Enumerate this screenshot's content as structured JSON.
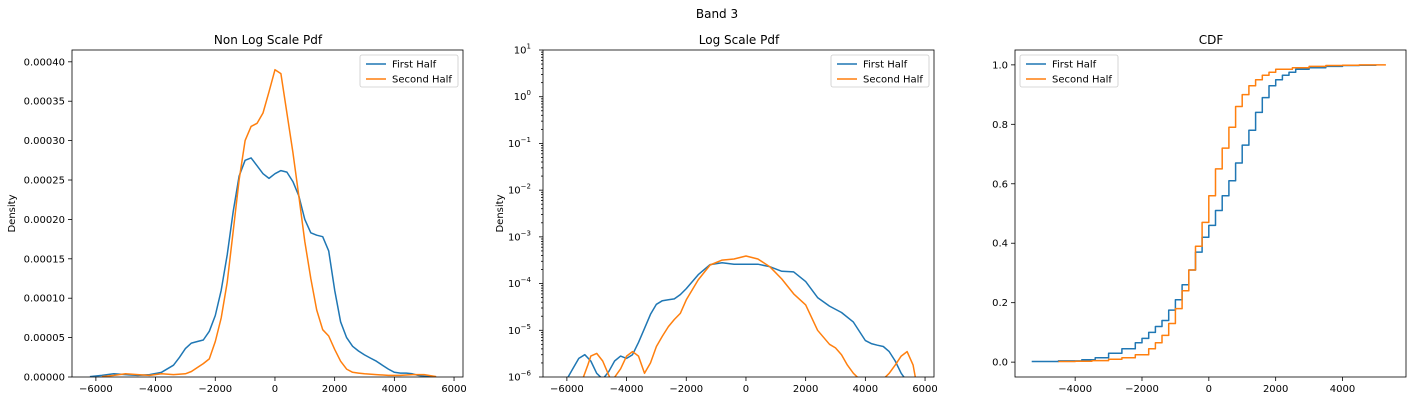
{
  "figure": {
    "suptitle": "Band 3"
  },
  "colors": {
    "first_half": "#1f77b4",
    "second_half": "#ff7f0e"
  },
  "chart_data": [
    {
      "type": "line",
      "title": "Non Log Scale Pdf",
      "xlabel": "",
      "ylabel": "Density",
      "xlim": [
        -6800,
        6300
      ],
      "ylim": [
        0,
        0.000415
      ],
      "xticks": [
        -6000,
        -4000,
        -2000,
        0,
        2000,
        4000,
        6000
      ],
      "xtick_labels": [
        "−6000",
        "−4000",
        "−2000",
        "0",
        "2000",
        "4000",
        "6000"
      ],
      "yticks": [
        0,
        5e-05,
        0.0001,
        0.00015,
        0.0002,
        0.00025,
        0.0003,
        0.00035,
        0.0004
      ],
      "ytick_labels": [
        "0.00000",
        "0.00005",
        "0.00010",
        "0.00015",
        "0.00020",
        "0.00025",
        "0.00030",
        "0.00035",
        "0.00040"
      ],
      "legend": "top-right",
      "series": [
        {
          "name": "First Half",
          "x": [
            -6200,
            -5800,
            -5400,
            -5000,
            -4600,
            -4200,
            -3800,
            -3400,
            -3200,
            -3000,
            -2800,
            -2600,
            -2400,
            -2200,
            -2000,
            -1800,
            -1600,
            -1400,
            -1200,
            -1000,
            -800,
            -600,
            -400,
            -200,
            0,
            200,
            400,
            600,
            800,
            1000,
            1200,
            1400,
            1600,
            1800,
            2000,
            2200,
            2400,
            2600,
            2800,
            3000,
            3200,
            3400,
            3600,
            3800,
            4000,
            4200,
            4400,
            4600,
            4800,
            5000,
            5400
          ],
          "y": [
            5e-07,
            2e-06,
            4e-06,
            3e-06,
            2e-06,
            3e-06,
            6e-06,
            1.5e-05,
            2.5e-05,
            3.6e-05,
            4.3e-05,
            4.5e-05,
            4.7e-05,
            5.8e-05,
            7.8e-05,
            0.00011,
            0.000155,
            0.00021,
            0.000255,
            0.000275,
            0.000278,
            0.000268,
            0.000258,
            0.000252,
            0.000258,
            0.000262,
            0.00026,
            0.000248,
            0.00023,
            0.0002,
            0.000183,
            0.00018,
            0.000178,
            0.00016,
            0.00011,
            7e-05,
            5e-05,
            3.9e-05,
            3.3e-05,
            2.8e-05,
            2.4e-05,
            2e-05,
            1.5e-05,
            1e-05,
            6e-06,
            5e-06,
            5e-06,
            4e-06,
            2e-06,
            1e-06,
            2e-07
          ]
        },
        {
          "name": "Second Half",
          "x": [
            -5800,
            -5400,
            -5000,
            -4600,
            -4200,
            -3800,
            -3400,
            -3000,
            -2800,
            -2600,
            -2400,
            -2200,
            -2000,
            -1800,
            -1600,
            -1400,
            -1200,
            -1000,
            -800,
            -600,
            -400,
            -200,
            0,
            200,
            400,
            600,
            800,
            1000,
            1200,
            1400,
            1600,
            1800,
            2000,
            2200,
            2400,
            2600,
            2800,
            3000,
            3400,
            3800,
            4200,
            4600,
            5000,
            5400
          ],
          "y": [
            5e-07,
            2e-06,
            4e-06,
            3e-06,
            2e-06,
            4e-06,
            3e-06,
            4e-06,
            7e-06,
            1.2e-05,
            1.7e-05,
            2.3e-05,
            4.5e-05,
            7.5e-05,
            0.00012,
            0.000185,
            0.00025,
            0.0003,
            0.000318,
            0.000322,
            0.000335,
            0.000362,
            0.00039,
            0.000385,
            0.000335,
            0.000285,
            0.00023,
            0.000172,
            0.000125,
            8.5e-05,
            6e-05,
            5.2e-05,
            3.5e-05,
            2e-05,
            1e-05,
            6e-06,
            5e-06,
            4e-06,
            3e-06,
            2e-06,
            2e-06,
            3e-06,
            3e-06,
            5e-07
          ]
        }
      ]
    },
    {
      "type": "line",
      "title": "Log Scale Pdf",
      "xlabel": "",
      "ylabel": "Density",
      "yscale": "log",
      "xlim": [
        -6800,
        6300
      ],
      "ylim": [
        1e-06,
        10
      ],
      "xticks": [
        -6000,
        -4000,
        -2000,
        0,
        2000,
        4000,
        6000
      ],
      "xtick_labels": [
        "−6000",
        "−4000",
        "−2000",
        "0",
        "2000",
        "4000",
        "6000"
      ],
      "yticks": [
        1e-06,
        1e-05,
        0.0001,
        0.001,
        0.01,
        0.1,
        1,
        10
      ],
      "ytick_exponents": [
        "−6",
        "−5",
        "−4",
        "−3",
        "−2",
        "−1",
        "0",
        "1"
      ],
      "legend": "top-right",
      "series": [
        {
          "name": "First Half",
          "x": [
            -6000,
            -5800,
            -5600,
            -5400,
            -5200,
            -5000,
            -4800,
            -4600,
            -4400,
            -4200,
            -4000,
            -3800,
            -3600,
            -3400,
            -3200,
            -3000,
            -2800,
            -2600,
            -2400,
            -2200,
            -2000,
            -1600,
            -1200,
            -800,
            -400,
            0,
            400,
            800,
            1200,
            1600,
            2000,
            2400,
            2800,
            3200,
            3600,
            4000,
            4200,
            4400,
            4600,
            4800,
            5000,
            5200,
            5400
          ],
          "y": [
            9e-07,
            1.5e-06,
            2.5e-06,
            3e-06,
            2.2e-06,
            1.2e-06,
            9e-07,
            1.3e-06,
            2.2e-06,
            2.8e-06,
            2.5e-06,
            3e-06,
            5.5e-06,
            1.1e-05,
            2.2e-05,
            3.6e-05,
            4.3e-05,
            4.5e-05,
            4.7e-05,
            5.8e-05,
            7.8e-05,
            0.000155,
            0.000255,
            0.000278,
            0.000258,
            0.000258,
            0.00026,
            0.00023,
            0.000183,
            0.000178,
            0.00011,
            5e-05,
            3.3e-05,
            2.4e-05,
            1.5e-05,
            6e-06,
            5.2e-06,
            4.8e-06,
            4.5e-06,
            3.5e-06,
            2.2e-06,
            1.2e-06,
            8e-07
          ]
        },
        {
          "name": "Second Half",
          "x": [
            -5500,
            -5300,
            -5200,
            -5000,
            -4800,
            -4600,
            -4500,
            -4200,
            -4000,
            -3800,
            -3600,
            -3400,
            -3200,
            -3000,
            -2800,
            -2600,
            -2400,
            -2200,
            -2000,
            -1600,
            -1200,
            -800,
            -400,
            0,
            400,
            800,
            1200,
            1600,
            2000,
            2400,
            2800,
            3000,
            3200,
            3400,
            3600,
            3800,
            4000,
            4200,
            4400,
            4600,
            4800,
            5000,
            5200,
            5400,
            5600,
            5700
          ],
          "y": [
            8e-07,
            1.8e-06,
            2.8e-06,
            3.2e-06,
            2.2e-06,
            1.1e-06,
            8e-07,
            1.5e-06,
            2.8e-06,
            3.5e-06,
            2.8e-06,
            1.2e-06,
            2e-06,
            4.5e-06,
            7.5e-06,
            1.2e-05,
            1.7e-05,
            2.3e-05,
            4.5e-05,
            0.00012,
            0.00025,
            0.000318,
            0.000335,
            0.00039,
            0.000335,
            0.00023,
            0.000125,
            6e-05,
            3.5e-05,
            1e-05,
            5e-06,
            4.2e-06,
            3e-06,
            1.8e-06,
            1.2e-06,
            9e-07,
            8e-07,
            9e-07,
            8e-07,
            9e-07,
            1.2e-06,
            1.8e-06,
            2.8e-06,
            3.5e-06,
            1.8e-06,
            8e-07
          ]
        }
      ]
    },
    {
      "type": "line",
      "title": "CDF",
      "xlabel": "",
      "ylabel": "",
      "xlim": [
        -5800,
        5900
      ],
      "ylim": [
        -0.05,
        1.05
      ],
      "xticks": [
        -4000,
        -2000,
        0,
        2000,
        4000
      ],
      "xtick_labels": [
        "−4000",
        "−2000",
        "0",
        "2000",
        "4000"
      ],
      "yticks": [
        0,
        0.2,
        0.4,
        0.6,
        0.8,
        1.0
      ],
      "ytick_labels": [
        "0.0",
        "0.2",
        "0.4",
        "0.6",
        "0.8",
        "1.0"
      ],
      "legend": "top-left",
      "series": [
        {
          "name": "First Half",
          "x": [
            -5300,
            -4500,
            -3800,
            -3400,
            -3000,
            -2600,
            -2200,
            -2000,
            -1800,
            -1600,
            -1400,
            -1200,
            -1000,
            -800,
            -600,
            -400,
            -200,
            0,
            200,
            400,
            600,
            800,
            1000,
            1200,
            1400,
            1600,
            1800,
            2000,
            2200,
            2400,
            2600,
            3000,
            3500,
            4000,
            4500,
            5000
          ],
          "y": [
            0.002,
            0.004,
            0.008,
            0.015,
            0.03,
            0.045,
            0.065,
            0.08,
            0.1,
            0.12,
            0.14,
            0.175,
            0.21,
            0.26,
            0.31,
            0.37,
            0.42,
            0.46,
            0.51,
            0.56,
            0.61,
            0.67,
            0.73,
            0.78,
            0.84,
            0.89,
            0.93,
            0.95,
            0.965,
            0.975,
            0.985,
            0.99,
            0.995,
            0.998,
            0.999,
            1.0
          ]
        },
        {
          "name": "Second Half",
          "x": [
            -4500,
            -4000,
            -3500,
            -3000,
            -2600,
            -2200,
            -1800,
            -1600,
            -1400,
            -1200,
            -1000,
            -800,
            -600,
            -400,
            -200,
            0,
            200,
            400,
            600,
            800,
            1000,
            1200,
            1400,
            1600,
            1800,
            2000,
            2500,
            3000,
            3500,
            4000,
            4500,
            5000,
            5300
          ],
          "y": [
            0.002,
            0.003,
            0.005,
            0.01,
            0.015,
            0.025,
            0.045,
            0.065,
            0.09,
            0.13,
            0.18,
            0.24,
            0.31,
            0.39,
            0.47,
            0.56,
            0.65,
            0.72,
            0.79,
            0.86,
            0.9,
            0.93,
            0.95,
            0.965,
            0.975,
            0.985,
            0.99,
            0.995,
            0.998,
            0.999,
            1.0,
            1.0,
            1.0
          ]
        }
      ]
    }
  ]
}
